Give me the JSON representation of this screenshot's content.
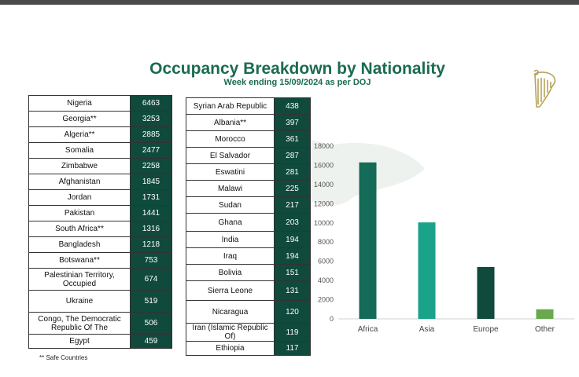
{
  "title": "Occupancy Breakdown by Nationality",
  "subtitle": "Week ending 15/09/2024 as per DOJ",
  "footnote": "** Safe Countries",
  "logo_icon": "harp-icon",
  "colors": {
    "title": "#1a6b52",
    "value_cell": "#0f4a3c",
    "africa": "#146b57",
    "asia": "#1aa38a",
    "europe": "#0f4a3c",
    "other": "#6aa84f"
  },
  "table_left": [
    {
      "name": "Nigeria",
      "value": "6463"
    },
    {
      "name": "Georgia**",
      "value": "3253"
    },
    {
      "name": "Algeria**",
      "value": "2885"
    },
    {
      "name": "Somalia",
      "value": "2477"
    },
    {
      "name": "Zimbabwe",
      "value": "2258"
    },
    {
      "name": "Afghanistan",
      "value": "1845"
    },
    {
      "name": "Jordan",
      "value": "1731"
    },
    {
      "name": "Pakistan",
      "value": "1441"
    },
    {
      "name": "South Africa**",
      "value": "1316"
    },
    {
      "name": "Bangladesh",
      "value": "1218"
    },
    {
      "name": "Botswana**",
      "value": "753"
    },
    {
      "name": "Palestinian Territory, Occupied",
      "value": "674"
    },
    {
      "name": "Ukraine",
      "value": "519"
    },
    {
      "name": "Congo, The Democratic Republic Of The",
      "value": "506"
    },
    {
      "name": "Egypt",
      "value": "459"
    }
  ],
  "table_right": [
    {
      "name": "Syrian Arab Republic",
      "value": "438"
    },
    {
      "name": "Albania**",
      "value": "397"
    },
    {
      "name": "Morocco",
      "value": "361"
    },
    {
      "name": "El Salvador",
      "value": "287"
    },
    {
      "name": "Eswatini",
      "value": "281"
    },
    {
      "name": "Malawi",
      "value": "225"
    },
    {
      "name": "Sudan",
      "value": "217"
    },
    {
      "name": "Ghana",
      "value": "203"
    },
    {
      "name": "India",
      "value": "194"
    },
    {
      "name": "Iraq",
      "value": "194"
    },
    {
      "name": "Bolivia",
      "value": "151"
    },
    {
      "name": "Sierra Leone",
      "value": "131"
    },
    {
      "name": "Nicaragua",
      "value": "120"
    },
    {
      "name": "Iran (Islamic Republic Of)",
      "value": "119"
    },
    {
      "name": "Ethiopia",
      "value": "117"
    }
  ],
  "chart_data": {
    "type": "bar",
    "categories": [
      "Africa",
      "Asia",
      "Europe",
      "Other"
    ],
    "values": [
      16300,
      10050,
      5400,
      1000
    ],
    "ylim": [
      0,
      18000
    ],
    "yticks": [
      0,
      2000,
      4000,
      6000,
      8000,
      10000,
      12000,
      14000,
      16000,
      18000
    ],
    "grid": false,
    "legend": "none",
    "colors": [
      "#146b57",
      "#1aa38a",
      "#0f4a3c",
      "#6aa84f"
    ]
  }
}
